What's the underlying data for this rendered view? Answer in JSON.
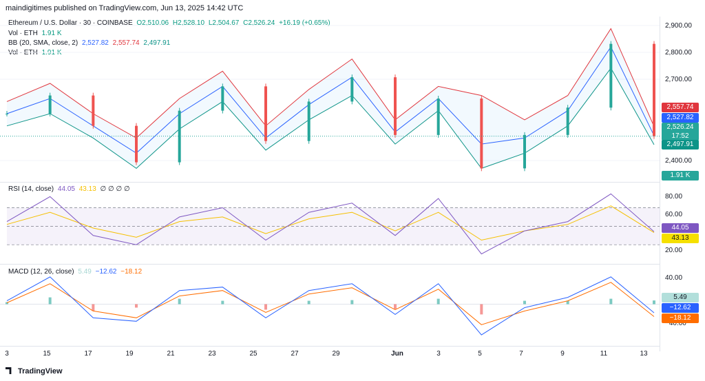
{
  "header": {
    "publisher": "maindigitimes published on TradingView.com, Jun 13, 2025 14:42 UTC"
  },
  "legend": {
    "symbol": "Ethereum / U.S. Dollar · 30 · COINBASE",
    "o": "O2,510.06",
    "h": "H2,528.10",
    "l": "L2,504.67",
    "c": "C2,526.24",
    "chg": "+16.19 (+0.65%)",
    "vol": "Vol · ETH",
    "vol_val": "1.91 K",
    "bb": "BB (20, SMA, close, 2)",
    "bb_mid": "2,527.82",
    "bb_up": "2,557.74",
    "bb_lo": "2,497.91",
    "vol2": "Vol · ETH",
    "vol2_val": "1.91 K",
    "rsi": "RSI (14, close)",
    "rsi_val": "44.05",
    "rsi_ma": "43.13",
    "rsi_zeros": "∅ ∅ ∅ ∅",
    "macd": "MACD (12, 26, close)",
    "macd_hist": "5.49",
    "macd_line": "−12.62",
    "macd_sig": "−18.12"
  },
  "price_axis": [
    "2,900.00",
    "2,800.00",
    "2,700.00",
    "2,400.00"
  ],
  "price_tags": {
    "bb_up": "2,557.74",
    "bb_mid": "2,527.82",
    "close": "2,526.24",
    "timer": "17:52",
    "bb_lo": "2,497.91",
    "vol": "1.91 K"
  },
  "rsi_axis": [
    "80.00",
    "60.00",
    "20.00"
  ],
  "rsi_tags": {
    "rsi": "44.05",
    "ma": "43.13"
  },
  "macd_axis": [
    "40.00",
    "−40.00"
  ],
  "macd_tags": {
    "hist": "5.49",
    "line": "−12.62",
    "sig": "−18.12"
  },
  "x_axis": [
    "3",
    "15",
    "17",
    "19",
    "21",
    "23",
    "25",
    "27",
    "29",
    "Jun",
    "3",
    "5",
    "7",
    "9",
    "11",
    "13"
  ],
  "brand": "TradingView",
  "colors": {
    "up": "#26a69a",
    "down": "#ef5350",
    "bb_upper": "#e0363d",
    "bb_lower": "#0d9488",
    "bb_basis": "#2962ff",
    "rsi": "#7e57c2",
    "rsi_ma": "#f5c000",
    "macd": "#2962ff",
    "signal": "#ff6d00"
  },
  "chart_data": {
    "type": "line",
    "title": "Ethereum / U.S. Dollar · 30 · COINBASE",
    "x": [
      "3",
      "15",
      "17",
      "19",
      "21",
      "23",
      "25",
      "27",
      "29",
      "Jun",
      "3",
      "5",
      "7",
      "9",
      "11",
      "13"
    ],
    "ylim": [
      2380,
      2920
    ],
    "series": [
      {
        "name": "Close",
        "values": [
          2600,
          2660,
          2560,
          2440,
          2610,
          2690,
          2510,
          2640,
          2720,
          2530,
          2650,
          2420,
          2530,
          2620,
          2830,
          2526
        ]
      },
      {
        "name": "BB upper",
        "values": [
          2640,
          2700,
          2600,
          2520,
          2650,
          2740,
          2560,
          2680,
          2780,
          2580,
          2690,
          2660,
          2580,
          2660,
          2880,
          2558
        ]
      },
      {
        "name": "BB basis",
        "values": [
          2600,
          2650,
          2560,
          2470,
          2600,
          2690,
          2520,
          2630,
          2720,
          2540,
          2650,
          2500,
          2520,
          2610,
          2820,
          2528
        ]
      },
      {
        "name": "BB lower",
        "values": [
          2560,
          2600,
          2520,
          2420,
          2550,
          2640,
          2480,
          2580,
          2660,
          2500,
          2610,
          2420,
          2470,
          2560,
          2750,
          2498
        ]
      }
    ],
    "rsi": {
      "ylim": [
        10,
        95
      ],
      "values": [
        55,
        82,
        40,
        30,
        60,
        70,
        35,
        65,
        75,
        40,
        80,
        20,
        45,
        55,
        85,
        44.05
      ],
      "ma": [
        52,
        65,
        48,
        38,
        55,
        60,
        42,
        58,
        65,
        45,
        65,
        35,
        45,
        52,
        72,
        43.13
      ]
    },
    "macd": {
      "ylim": [
        -60,
        55
      ],
      "macd": [
        5,
        40,
        -20,
        -25,
        20,
        25,
        -20,
        20,
        30,
        -15,
        30,
        -45,
        -5,
        10,
        40,
        -12.62
      ],
      "signal": [
        2,
        30,
        -10,
        -20,
        12,
        20,
        -12,
        15,
        24,
        -8,
        22,
        -30,
        -10,
        5,
        32,
        -18.12
      ],
      "hist": [
        3,
        10,
        -10,
        -5,
        8,
        5,
        -8,
        5,
        6,
        -7,
        8,
        -15,
        5,
        5,
        8,
        5.49
      ]
    }
  }
}
